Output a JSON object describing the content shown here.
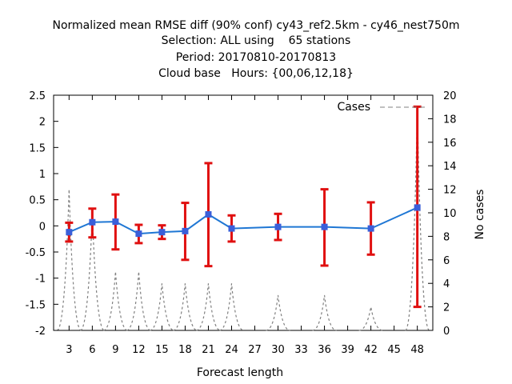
{
  "chart_data": {
    "type": "line",
    "title_lines": [
      "Normalized mean RMSE diff (90% conf) cy43_ref2.5km - cy46_nest750m",
      "Selection: ALL using    65 stations",
      "Period: 20170810-20170813",
      "Cloud base   Hours: {00,06,12,18}"
    ],
    "xlabel": "Forecast length",
    "ylabel_right": "No cases",
    "legend_label": "Cases",
    "x_ticks": [
      3,
      6,
      9,
      12,
      15,
      18,
      21,
      24,
      27,
      30,
      33,
      36,
      39,
      42,
      45,
      48
    ],
    "xlim": [
      1,
      50
    ],
    "ylim": [
      -2,
      2.5
    ],
    "y_ticks": [
      -2,
      -1.5,
      -1,
      -0.5,
      0,
      0.5,
      1,
      1.5,
      2,
      2.5
    ],
    "y_tick_labels": [
      "-2",
      "-1.5",
      "-1",
      "-0.5",
      "0",
      "0.5",
      "1",
      "1.5",
      "2",
      "2.5"
    ],
    "y2lim": [
      0,
      20
    ],
    "y2_ticks": [
      0,
      2,
      4,
      6,
      8,
      10,
      12,
      14,
      16,
      18,
      20
    ],
    "series": [
      {
        "x": [
          3,
          6,
          9,
          12,
          15,
          18,
          21,
          24,
          30,
          36,
          42,
          48
        ],
        "y": [
          -0.12,
          0.07,
          0.08,
          -0.15,
          -0.12,
          -0.1,
          0.22,
          -0.05,
          -0.02,
          -0.02,
          -0.05,
          0.35
        ],
        "err_low": [
          -0.3,
          -0.22,
          -0.45,
          -0.33,
          -0.25,
          -0.65,
          -0.77,
          -0.3,
          -0.27,
          -0.76,
          -0.55,
          -1.55
        ],
        "err_high": [
          0.06,
          0.33,
          0.6,
          0.02,
          0.01,
          0.44,
          1.2,
          0.2,
          0.23,
          0.7,
          0.45,
          2.28
        ],
        "color": "#1f77d4",
        "error_color": "#e01010"
      }
    ],
    "cases": {
      "x": [
        3,
        6,
        9,
        12,
        15,
        18,
        21,
        24,
        30,
        36,
        42,
        48
      ],
      "y": [
        12,
        10,
        5,
        5,
        4,
        4,
        4,
        4,
        3,
        3,
        2,
        19
      ],
      "color": "#808080"
    },
    "grid": false,
    "legend_position": "top-right"
  }
}
